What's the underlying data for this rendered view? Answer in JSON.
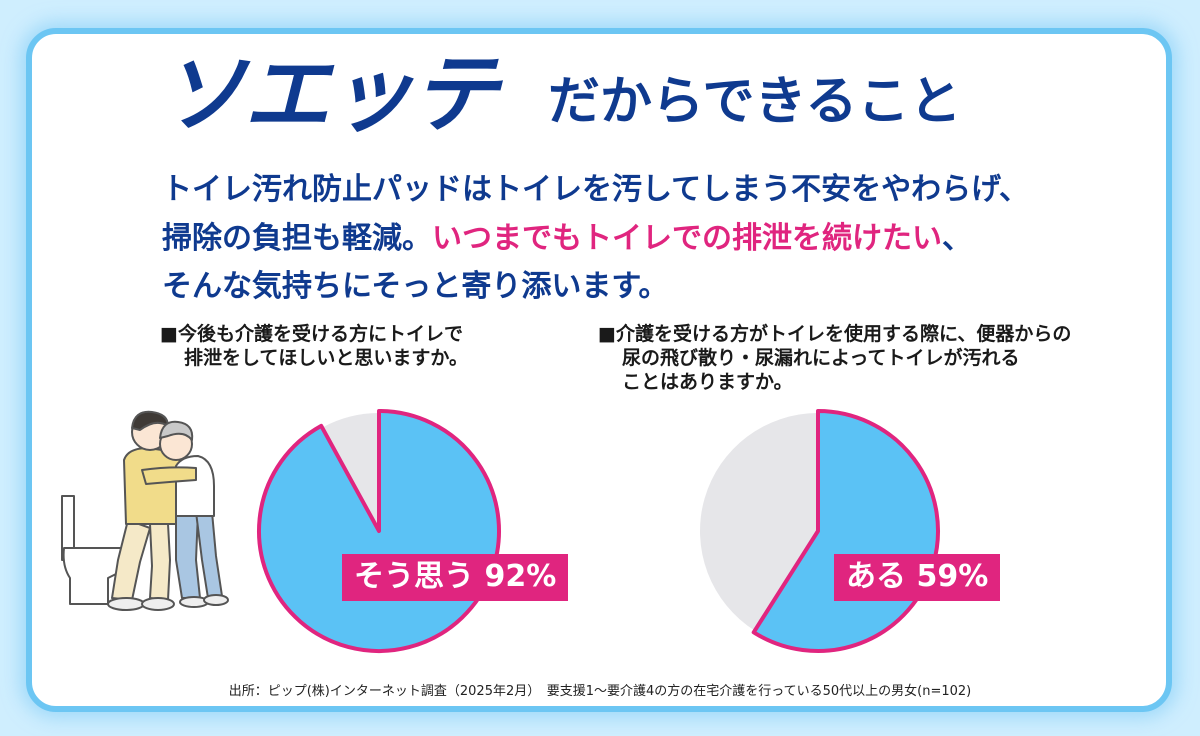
{
  "header": {
    "brand": "ソエッテ",
    "headline": "だからできること"
  },
  "lead": {
    "line1": "トイレ汚れ防止パッドはトイレを汚してしまう不安をやわらげ、",
    "line2_plain": "掃除の負担も軽減。",
    "line2_highlight": "いつまでもトイレでの排泄を続けたい",
    "line2_tail": "、",
    "line3": "そんな気持ちにそっと寄り添います。"
  },
  "colors": {
    "navy": "#0f3a8f",
    "pink": "#e0257f",
    "blue": "#5bc2f5",
    "gray": "#e6e6e9"
  },
  "chart_data": [
    {
      "type": "pie",
      "question_line1": "■今後も介護を受ける方にトイレで",
      "question_line2": "排泄をしてほしいと思いますか。",
      "slices": [
        {
          "label": "そう思う",
          "value": 92
        },
        {
          "value": 8
        }
      ],
      "callout": "そう思う 92%"
    },
    {
      "type": "pie",
      "question_line1": "■介護を受ける方がトイレを使用する際に、便器からの",
      "question_line2": "尿の飛び散り・尿漏れによってトイレが汚れる",
      "question_line3": "ことはありますか。",
      "slices": [
        {
          "label": "ある",
          "value": 59
        },
        {
          "value": 41
        }
      ],
      "callout": "ある 59%"
    }
  ],
  "illustration": {
    "icon": "caregiver-helping-to-toilet-illustration"
  },
  "source": "出所：ピップ(株)インターネット調査（2025年2月）　要支援1～要介護4の方の在宅介護を行っている50代以上の男女(n=102)"
}
